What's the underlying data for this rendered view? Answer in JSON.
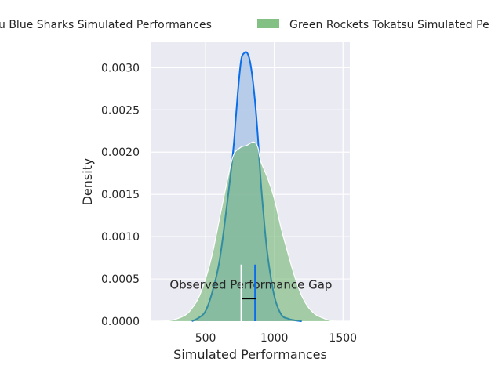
{
  "chart_data": {
    "type": "area",
    "title": "",
    "xlabel": "Simulated Performances",
    "ylabel": "Density",
    "xlim": [
      100,
      1550
    ],
    "ylim": [
      0,
      0.0033
    ],
    "xticks": [
      500,
      1000,
      1500
    ],
    "xtick_labels": [
      "500",
      "1000",
      "1500"
    ],
    "yticks": [
      0,
      0.0005,
      0.001,
      0.0015,
      0.002,
      0.0025,
      0.003
    ],
    "ytick_labels": [
      "0.0000",
      "0.0005",
      "0.0010",
      "0.0015",
      "0.0020",
      "0.0025",
      "0.0030"
    ],
    "grid": true,
    "legend_position": "top, outside plot area",
    "series": [
      {
        "name": "Yokohama Canopus Blue Sharks Simulated Performances",
        "legend_visible_text": "u Blue Sharks Simulated Performances",
        "fill_color": "#aec7e8",
        "line_color": "#0b6ee8",
        "x": [
          400,
          450,
          500,
          550,
          600,
          650,
          700,
          720,
          740,
          760,
          780,
          800,
          820,
          840,
          860,
          880,
          900,
          920,
          950,
          1000,
          1050,
          1100,
          1150,
          1200
        ],
        "y": [
          0.0,
          4e-05,
          0.00012,
          0.00035,
          0.0007,
          0.0013,
          0.002,
          0.0024,
          0.0028,
          0.0031,
          0.00317,
          0.00318,
          0.0031,
          0.0029,
          0.0026,
          0.0022,
          0.0017,
          0.0013,
          0.0008,
          0.0003,
          8e-05,
          3e-05,
          1e-05,
          0.0
        ]
      },
      {
        "name": "Green Rockets Tokatsu Simulated Performances",
        "legend_visible_text": "Green Rockets Tokatsu Simulated Pe",
        "fill_color": "#5aab5a",
        "line_color": "#ffffff",
        "x": [
          150,
          250,
          350,
          400,
          450,
          500,
          550,
          600,
          650,
          700,
          750,
          800,
          850,
          880,
          900,
          950,
          1000,
          1050,
          1100,
          1150,
          1200,
          1250,
          1300,
          1350,
          1400,
          1450
        ],
        "y": [
          0.0,
          1e-05,
          7e-05,
          0.00015,
          0.00028,
          0.0005,
          0.0008,
          0.0012,
          0.0016,
          0.00195,
          0.00205,
          0.00208,
          0.00212,
          0.00206,
          0.0019,
          0.0017,
          0.00145,
          0.0011,
          0.0008,
          0.00052,
          0.0003,
          0.00016,
          8e-05,
          4e-05,
          1e-05,
          0.0
        ]
      }
    ],
    "annotations": [
      {
        "text": "Observed Performance Gap",
        "x": 830,
        "y": 0.00033,
        "markers": [
          {
            "x": 760,
            "color": "#ffffff",
            "ymax": 0.00067
          },
          {
            "x": 860,
            "color": "#0b6ee8",
            "ymax": 0.00067
          }
        ],
        "bracket": {
          "x1": 765,
          "x2": 870,
          "y": 0.00033
        }
      }
    ]
  }
}
